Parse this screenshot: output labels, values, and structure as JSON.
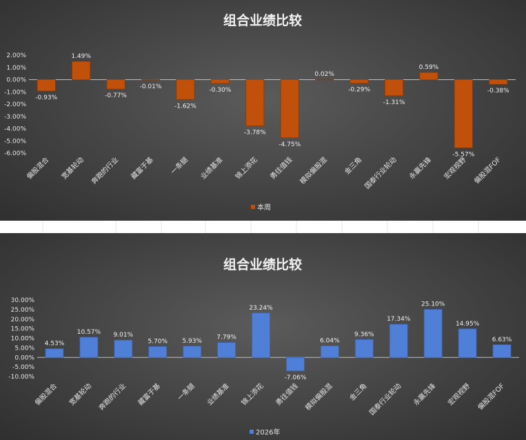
{
  "colors": {
    "bar_top": "#c0500a",
    "bar_top_edge": "#8a3a08",
    "bar_bottom": "#4f7fd6",
    "bar_bottom_edge": "#3a64b4",
    "text": "#e6e6e6",
    "axis": "#bfbfbf"
  },
  "chart_data": [
    {
      "type": "bar",
      "title": "组合业绩比较",
      "categories": [
        "偏股混合",
        "宽基轮动",
        "奔跑的行业",
        "藏富于基",
        "一条腿",
        "业绩基准",
        "锦上添花",
        "勇往值钱",
        "模拟偏股混",
        "金三角",
        "国泰行业轮动",
        "永赢先锋",
        "宏观视野",
        "偏股混FOF"
      ],
      "series": [
        {
          "name": "本周",
          "values": [
            -0.93,
            1.49,
            -0.77,
            -0.01,
            -1.62,
            -0.3,
            -3.78,
            -4.75,
            0.02,
            -0.29,
            -1.31,
            0.59,
            -5.57,
            -0.38
          ],
          "labels": [
            "-0.93%",
            "1.49%",
            "-0.77%",
            "-0.01%",
            "-1.62%",
            "-0.30%",
            "-3.78%",
            "-4.75%",
            "0.02%",
            "-0.29%",
            "-1.31%",
            "0.59%",
            "-5.57%",
            "-0.38%"
          ]
        }
      ],
      "ylim": [
        -6,
        2
      ],
      "yticks": [
        2,
        1,
        0,
        -1,
        -2,
        -3,
        -4,
        -5,
        -6
      ],
      "ytick_labels": [
        "2.00%",
        "1.00%",
        "0.00%",
        "-1.00%",
        "-2.00%",
        "-3.00%",
        "-4.00%",
        "-5.00%",
        "-6.00%"
      ],
      "legend_position": "bottom",
      "grid": false,
      "xlabel": "",
      "ylabel": ""
    },
    {
      "type": "bar",
      "title": "组合业绩比较",
      "categories": [
        "偏股混合",
        "宽基轮动",
        "奔跑的行业",
        "藏富于基",
        "一条腿",
        "业绩基准",
        "锦上添花",
        "勇往值钱",
        "模拟偏股混",
        "金三角",
        "国泰行业轮动",
        "永赢先锋",
        "宏观视野",
        "偏股混FOF"
      ],
      "series": [
        {
          "name": "2026年",
          "values": [
            4.53,
            10.57,
            9.01,
            5.7,
            5.93,
            7.79,
            23.24,
            -7.06,
            6.04,
            9.36,
            17.34,
            25.1,
            14.95,
            6.63
          ],
          "labels": [
            "4.53%",
            "10.57%",
            "9.01%",
            "5.70%",
            "5.93%",
            "7.79%",
            "23.24%",
            "-7.06%",
            "6.04%",
            "9.36%",
            "17.34%",
            "25.10%",
            "14.95%",
            "6.63%"
          ]
        }
      ],
      "ylim": [
        -10,
        30
      ],
      "yticks": [
        30,
        25,
        20,
        15,
        10,
        5,
        0,
        -5,
        -10
      ],
      "ytick_labels": [
        "30.00%",
        "25.00%",
        "20.00%",
        "15.00%",
        "10.00%",
        "5.00%",
        "0.00%",
        "-5.00%",
        "-10.00%"
      ],
      "legend_position": "bottom",
      "grid": false,
      "xlabel": "",
      "ylabel": ""
    }
  ]
}
